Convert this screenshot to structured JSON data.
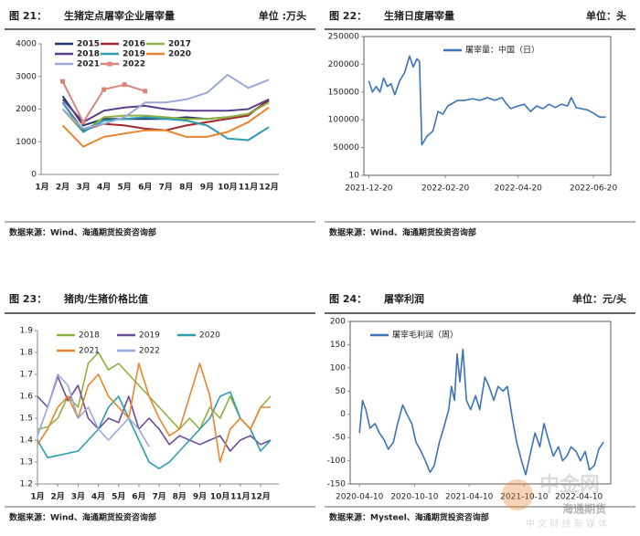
{
  "chart_data": [
    {
      "type": "line",
      "figure_label": "图 21：",
      "title": "生猪定点屠宰企业屠宰量",
      "unit": "单位 :万头",
      "source": "数据来源：Wind、海通期货投资咨询部",
      "categories": [
        "1月",
        "2月",
        "3月",
        "4月",
        "5月",
        "6月",
        "7月",
        "8月",
        "9月",
        "10月",
        "11月",
        "12月"
      ],
      "ylim": [
        0,
        4000
      ],
      "yticks": [
        0,
        1000,
        2000,
        3000,
        4000
      ],
      "grid": false,
      "frame": false,
      "legend": "upper-left",
      "series": [
        {
          "name": "2015",
          "color": "#1f3a6e",
          "values": [
            null,
            2400,
            1500,
            1700,
            1700,
            1700,
            1700,
            1750,
            1700,
            1750,
            1850,
            2250
          ]
        },
        {
          "name": "2016",
          "color": "#a0282d",
          "values": [
            null,
            2200,
            1350,
            1550,
            1500,
            1400,
            1350,
            1500,
            1600,
            1700,
            1800,
            2300
          ]
        },
        {
          "name": "2017",
          "color": "#8db13e",
          "values": [
            null,
            2000,
            1300,
            1750,
            1800,
            1800,
            1750,
            1700,
            1700,
            1750,
            1850,
            2200
          ]
        },
        {
          "name": "2018",
          "color": "#5b3e8f",
          "values": [
            null,
            2300,
            1600,
            1950,
            2050,
            2100,
            2000,
            1950,
            1950,
            1950,
            2000,
            2300
          ]
        },
        {
          "name": "2019",
          "color": "#2e9cb0",
          "values": [
            null,
            2200,
            1300,
            1650,
            1700,
            1750,
            1700,
            1650,
            1500,
            1100,
            1050,
            1450
          ]
        },
        {
          "name": "2020",
          "color": "#e8852e",
          "values": [
            null,
            1500,
            850,
            1150,
            1250,
            1350,
            1350,
            1150,
            1150,
            1300,
            1600,
            2050
          ]
        },
        {
          "name": "2021",
          "color": "#9aa8d8",
          "values": [
            null,
            2000,
            1400,
            1550,
            1750,
            2200,
            2200,
            2300,
            2500,
            3050,
            2650,
            2900
          ]
        },
        {
          "name": "2022",
          "color": "#d9857a",
          "marker": "square",
          "values": [
            null,
            2850,
            1600,
            2600,
            2750,
            2550,
            null,
            null,
            null,
            null,
            null,
            null
          ]
        }
      ]
    },
    {
      "type": "line",
      "figure_label": "图 22：",
      "title": "生猪日度屠宰量",
      "unit": "单位：头",
      "source": "数据来源：Wind、海通期货投资咨询部",
      "x": [
        "2021-12-20",
        "2021-12-23",
        "2021-12-26",
        "2021-12-29",
        "2022-01-01",
        "2022-01-04",
        "2022-01-07",
        "2022-01-10",
        "2022-01-14",
        "2022-01-18",
        "2022-01-22",
        "2022-01-25",
        "2022-01-28",
        "2022-01-30",
        "2022-02-01",
        "2022-02-05",
        "2022-02-10",
        "2022-02-14",
        "2022-02-18",
        "2022-02-22",
        "2022-02-26",
        "2022-03-02",
        "2022-03-08",
        "2022-03-14",
        "2022-03-20",
        "2022-03-26",
        "2022-04-01",
        "2022-04-07",
        "2022-04-10",
        "2022-04-14",
        "2022-04-20",
        "2022-04-25",
        "2022-04-30",
        "2022-05-05",
        "2022-05-10",
        "2022-05-15",
        "2022-05-20",
        "2022-05-25",
        "2022-05-30",
        "2022-06-02",
        "2022-06-06",
        "2022-06-10",
        "2022-06-15",
        "2022-06-20",
        "2022-06-25",
        "2022-06-30"
      ],
      "xlim": [
        "2021-12-16",
        "2022-07-04"
      ],
      "xticks": [
        "2021-12-20",
        "2022-02-20",
        "2022-04-20",
        "2022-06-20"
      ],
      "ylim": [
        10,
        250000
      ],
      "yticks": [
        10,
        50000,
        100000,
        150000,
        200000,
        250000
      ],
      "grid": false,
      "frame": true,
      "legend": "top",
      "series": [
        {
          "name": "屠宰量：中国（日）",
          "color": "#3b73b9",
          "values": [
            170000,
            150000,
            160000,
            150000,
            175000,
            160000,
            165000,
            145000,
            170000,
            185000,
            215000,
            195000,
            210000,
            205000,
            55000,
            70000,
            80000,
            115000,
            110000,
            125000,
            130000,
            135000,
            135000,
            138000,
            135000,
            140000,
            135000,
            140000,
            130000,
            120000,
            125000,
            128000,
            115000,
            125000,
            120000,
            128000,
            122000,
            128000,
            125000,
            140000,
            122000,
            120000,
            118000,
            112000,
            105000,
            105000
          ]
        }
      ]
    },
    {
      "type": "line",
      "figure_label": "图 23：",
      "title": "猪肉/生猪价格比值",
      "source": "数据来源：Wind、海通期货投资咨询部",
      "x": [
        1,
        1.5,
        2,
        2.5,
        3,
        3.5,
        4,
        4.5,
        5,
        5.5,
        6,
        6.5,
        7,
        7.5,
        8,
        8.5,
        9,
        9.5,
        10,
        10.5,
        11,
        11.5,
        12,
        12.5
      ],
      "xlim": [
        1,
        12.9
      ],
      "xticks": [
        {
          "value": 1,
          "label": "1月"
        },
        {
          "value": 2,
          "label": "2月"
        },
        {
          "value": 3,
          "label": "3月"
        },
        {
          "value": 4,
          "label": "4月"
        },
        {
          "value": 5,
          "label": "5月"
        },
        {
          "value": 6,
          "label": "6月"
        },
        {
          "value": 7,
          "label": "7月"
        },
        {
          "value": 8,
          "label": "8月"
        },
        {
          "value": 9,
          "label": "9月"
        },
        {
          "value": 10,
          "label": "10月"
        },
        {
          "value": 11,
          "label": "11月"
        },
        {
          "value": 12,
          "label": "12月"
        }
      ],
      "ylim": [
        1.2,
        1.9
      ],
      "yticks": [
        1.2,
        1.3,
        1.4,
        1.5,
        1.6,
        1.7,
        1.8,
        1.9
      ],
      "grid": false,
      "frame": false,
      "legend": "upper-left",
      "series": [
        {
          "name": "2018",
          "color": "#8db13e",
          "values": [
            1.45,
            1.46,
            1.5,
            1.6,
            1.55,
            1.75,
            1.8,
            1.72,
            1.75,
            1.7,
            1.65,
            1.6,
            1.55,
            1.5,
            1.45,
            1.5,
            1.45,
            1.55,
            1.5,
            1.6,
            1.5,
            1.45,
            1.55,
            1.6
          ]
        },
        {
          "name": "2019",
          "color": "#6a4c9c",
          "values": [
            1.6,
            1.55,
            1.69,
            1.58,
            1.65,
            1.5,
            1.45,
            1.5,
            1.48,
            1.6,
            1.45,
            1.5,
            1.45,
            1.38,
            1.42,
            1.4,
            1.38,
            1.4,
            1.42,
            1.35,
            1.4,
            1.42,
            1.38,
            1.4
          ]
        },
        {
          "name": "2020",
          "color": "#2e9cb0",
          "values": [
            1.4,
            1.32,
            1.33,
            1.34,
            1.35,
            1.4,
            1.45,
            1.55,
            1.6,
            1.5,
            1.4,
            1.3,
            1.27,
            1.3,
            1.35,
            1.4,
            1.45,
            1.5,
            1.6,
            1.62,
            1.5,
            1.45,
            1.35,
            1.4
          ]
        },
        {
          "name": "2021",
          "color": "#e8852e",
          "values": [
            1.38,
            1.45,
            1.55,
            1.6,
            1.5,
            1.65,
            1.7,
            1.6,
            1.55,
            1.5,
            1.75,
            1.6,
            1.5,
            1.42,
            1.45,
            1.6,
            1.75,
            1.6,
            1.3,
            1.45,
            1.5,
            1.45,
            1.55,
            1.55
          ]
        },
        {
          "name": "2022",
          "color": "#9aa8d8",
          "values": [
            1.42,
            1.55,
            1.7,
            1.65,
            1.5,
            1.55,
            1.45,
            1.4,
            1.45,
            1.5,
            1.45,
            1.37,
            null,
            null,
            null,
            null,
            null,
            null,
            null,
            null,
            null,
            null,
            null,
            null
          ]
        }
      ]
    },
    {
      "type": "line",
      "figure_label": "图 24：",
      "title": "屠宰利润",
      "unit": "单位：元/头",
      "source": "数据来源：Mysteel、海通期货投资咨询部",
      "x": [
        "2020-04-10",
        "2020-04-20",
        "2020-05-01",
        "2020-05-15",
        "2020-06-01",
        "2020-06-15",
        "2020-07-01",
        "2020-07-15",
        "2020-08-01",
        "2020-08-15",
        "2020-09-01",
        "2020-09-15",
        "2020-10-01",
        "2020-10-15",
        "2020-11-01",
        "2020-11-15",
        "2020-12-01",
        "2020-12-15",
        "2021-01-01",
        "2021-01-15",
        "2021-02-01",
        "2021-02-10",
        "2021-02-20",
        "2021-03-01",
        "2021-03-10",
        "2021-03-20",
        "2021-04-01",
        "2021-04-15",
        "2021-05-01",
        "2021-05-15",
        "2021-06-01",
        "2021-06-15",
        "2021-07-01",
        "2021-07-15",
        "2021-08-01",
        "2021-08-15",
        "2021-09-01",
        "2021-09-15",
        "2021-10-01",
        "2021-10-15",
        "2021-11-01",
        "2021-11-15",
        "2021-12-01",
        "2021-12-15",
        "2022-01-01",
        "2022-01-15",
        "2022-02-01",
        "2022-02-15",
        "2022-03-01",
        "2022-03-15",
        "2022-04-01",
        "2022-04-15",
        "2022-05-01",
        "2022-05-15",
        "2022-06-01",
        "2022-06-15",
        "2022-07-01"
      ],
      "xlim": [
        "2020-03-10",
        "2022-07-25"
      ],
      "xticks": [
        "2020-04-10",
        "2020-10-10",
        "2021-04-10",
        "2021-10-10",
        "2022-04-10"
      ],
      "ylim": [
        -150,
        200
      ],
      "yticks": [
        -150,
        -100,
        -50,
        0,
        50,
        100,
        150,
        200
      ],
      "grid": false,
      "frame": true,
      "legend": "top",
      "series": [
        {
          "name": "屠宰毛利润（周）",
          "color": "#3b73b9",
          "values": [
            -40,
            30,
            10,
            -30,
            -20,
            -40,
            -55,
            -75,
            -60,
            -20,
            20,
            0,
            -20,
            -60,
            -80,
            -100,
            -125,
            -110,
            -60,
            -30,
            10,
            60,
            30,
            130,
            70,
            140,
            30,
            10,
            40,
            10,
            80,
            60,
            30,
            60,
            50,
            60,
            -10,
            -60,
            -100,
            -130,
            -80,
            -40,
            -70,
            -20,
            -60,
            -90,
            -70,
            -100,
            -90,
            -70,
            -80,
            -100,
            -80,
            -120,
            -110,
            -75,
            -60
          ]
        }
      ]
    }
  ],
  "watermark": {
    "site": "中金网",
    "account": "海通期货",
    "tagline": "中 文 财 经 新 媒 体"
  }
}
